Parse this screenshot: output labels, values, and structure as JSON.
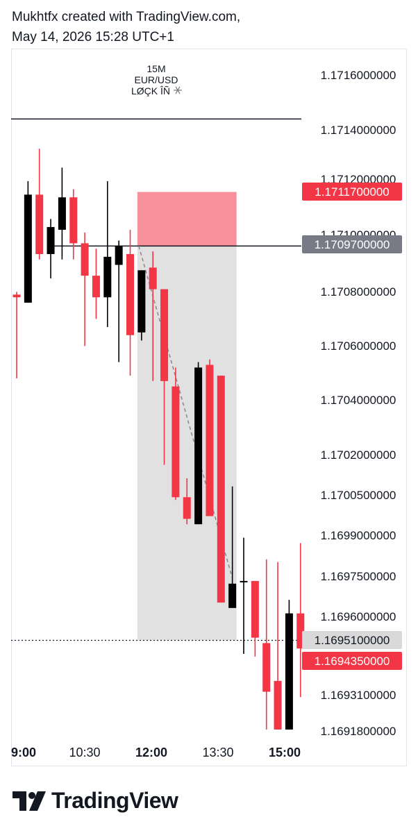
{
  "header": {
    "line1": "Mukhtfx created with TradingView.com,",
    "line2": "May 14, 2026 15:28 UTC+1"
  },
  "footer": {
    "brand": "TradingView",
    "logo_icon": "tradingview-logo-icon"
  },
  "colors": {
    "up": "#000000",
    "down": "#f23645",
    "sl_zone": "#f7919b",
    "tp_zone": "#dcdcdc",
    "badge_red": "#f23645",
    "badge_gray": "#787b86",
    "badge_light": "#d9d9d9"
  },
  "chart_data": {
    "type": "candlestick",
    "symbol_label": "15M",
    "pair_label": "EUR/USD",
    "tag_label": "LØÇK ÎÑ",
    "tag_icon": "snowflake-icon",
    "x_labels": [
      {
        "label": "9:00",
        "bold": true,
        "index": 0
      },
      {
        "label": "10:30",
        "bold": false,
        "index": 6
      },
      {
        "label": "12:00",
        "bold": true,
        "index": 12
      },
      {
        "label": "13:30",
        "bold": false,
        "index": 18
      },
      {
        "label": "15:00",
        "bold": true,
        "index": 24
      }
    ],
    "y_labels": [
      "1.1716000000",
      "1.1714000000",
      "1.1712000000",
      "1.1710000000",
      "1.1708000000",
      "1.1706000000",
      "1.1704000000",
      "1.1702000000",
      "1.1700500000",
      "1.1699000000",
      "1.1697500000",
      "1.1696000000",
      "1.1695100000",
      "1.1694350000",
      "1.1693100000",
      "1.1691800000"
    ],
    "price_badges": [
      {
        "label": "1.1711700000",
        "style": "red"
      },
      {
        "label": "1.1709700000",
        "style": "gray"
      },
      {
        "label": "1.1695100000",
        "style": "light"
      },
      {
        "label": "1.1694350000",
        "style": "red"
      }
    ],
    "candles": [
      {
        "o": 1.17079,
        "h": 1.1708,
        "l": 1.17048,
        "c": 1.17078
      },
      {
        "o": 1.17076,
        "h": 1.17121,
        "l": 1.17076,
        "c": 1.17116
      },
      {
        "o": 1.17116,
        "h": 1.17133,
        "l": 1.17092,
        "c": 1.17094
      },
      {
        "o": 1.17094,
        "h": 1.17107,
        "l": 1.17085,
        "c": 1.17104
      },
      {
        "o": 1.17103,
        "h": 1.17126,
        "l": 1.17092,
        "c": 1.17115
      },
      {
        "o": 1.17115,
        "h": 1.17118,
        "l": 1.17092,
        "c": 1.17098
      },
      {
        "o": 1.17098,
        "h": 1.17102,
        "l": 1.1706,
        "c": 1.17086
      },
      {
        "o": 1.17086,
        "h": 1.17096,
        "l": 1.1707,
        "c": 1.17078
      },
      {
        "o": 1.17078,
        "h": 1.17121,
        "l": 1.17067,
        "c": 1.17093
      },
      {
        "o": 1.1709,
        "h": 1.17099,
        "l": 1.17054,
        "c": 1.17097
      },
      {
        "o": 1.17094,
        "h": 1.17103,
        "l": 1.17049,
        "c": 1.17064
      },
      {
        "o": 1.17065,
        "h": 1.17088,
        "l": 1.17062,
        "c": 1.17088
      },
      {
        "o": 1.17089,
        "h": 1.17095,
        "l": 1.17047,
        "c": 1.17081
      },
      {
        "o": 1.17081,
        "h": 1.17081,
        "l": 1.17016,
        "c": 1.17047
      },
      {
        "o": 1.17045,
        "h": 1.17052,
        "l": 1.17003,
        "c": 1.17004
      },
      {
        "o": 1.17004,
        "h": 1.17011,
        "l": 1.16994,
        "c": 1.16996
      },
      {
        "o": 1.16994,
        "h": 1.17054,
        "l": 1.16994,
        "c": 1.17052
      },
      {
        "o": 1.17053,
        "h": 1.17055,
        "l": 1.16997,
        "c": 1.16997
      },
      {
        "o": 1.17049,
        "h": 1.17049,
        "l": 1.16965,
        "c": 1.16965
      },
      {
        "o": 1.16963,
        "h": 1.17008,
        "l": 1.16964,
        "c": 1.16972
      },
      {
        "o": 1.16973,
        "h": 1.16989,
        "l": 1.16946,
        "c": 1.16973
      },
      {
        "o": 1.16973,
        "h": 1.16973,
        "l": 1.16945,
        "c": 1.16952
      },
      {
        "o": 1.1695,
        "h": 1.16981,
        "l": 1.16918,
        "c": 1.16932
      },
      {
        "o": 1.16936,
        "h": 1.1698,
        "l": 1.16918,
        "c": 1.16918
      },
      {
        "o": 1.16918,
        "h": 1.16966,
        "l": 1.16918,
        "c": 1.16961
      },
      {
        "o": 1.16961,
        "h": 1.16987,
        "l": 1.1693,
        "c": 1.16948
      }
    ],
    "levels": {
      "top_line": 1.17144,
      "entry_line": 1.17097,
      "sl_top": 1.17117,
      "tp_price": 1.16951,
      "current_price": 1.169435
    },
    "zone_range": {
      "from_index": 11,
      "to_index": 19
    },
    "grid": false,
    "xlabel": "",
    "ylabel": ""
  }
}
